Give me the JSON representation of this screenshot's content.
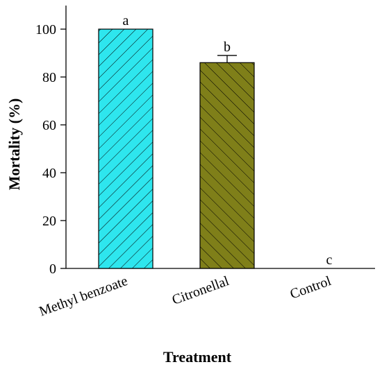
{
  "chart_data": {
    "type": "bar",
    "categories": [
      "Methyl benzoate",
      "Citronellal",
      "Control"
    ],
    "values": [
      100,
      86,
      0
    ],
    "error": [
      0,
      3,
      0
    ],
    "letters": [
      "a",
      "b",
      "c"
    ],
    "colors": [
      "#2ee6ee",
      "#7f7f19",
      "#ffffff"
    ],
    "hatch_color": "#000000",
    "xlabel": "Treatment",
    "ylabel": "Mortality (%)",
    "ylim": [
      0,
      110
    ],
    "yticks": [
      0,
      20,
      40,
      60,
      80,
      100
    ],
    "grid": false,
    "legend": "none"
  }
}
